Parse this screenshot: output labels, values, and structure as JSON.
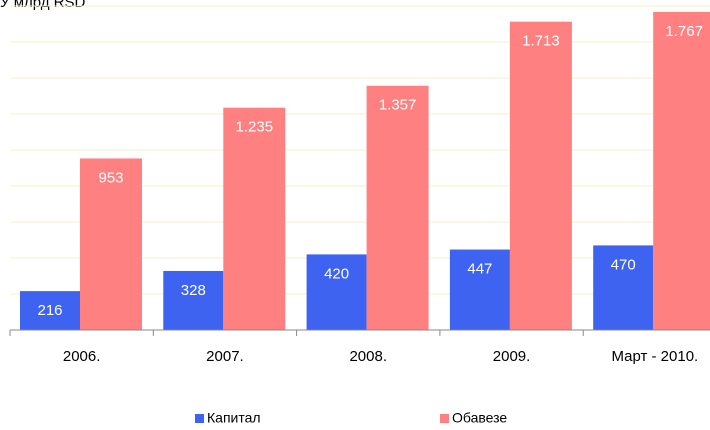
{
  "chart_data": {
    "type": "bar",
    "title": "У млрд RSD",
    "categories": [
      "2006.",
      "2007.",
      "2008.",
      "2009.",
      "Март - 2010."
    ],
    "series": [
      {
        "name": "Капитал",
        "color": "#3d63f0",
        "values": [
          216,
          328,
          420,
          447,
          470
        ],
        "value_labels": [
          "216",
          "328",
          "420",
          "447",
          "470"
        ]
      },
      {
        "name": "Обавезе",
        "color": "#ff8080",
        "values": [
          953,
          1235,
          1357,
          1713,
          1767
        ],
        "value_labels": [
          "953",
          "1.235",
          "1.357",
          "1.713",
          "1.767"
        ]
      }
    ],
    "ylim": [
      0,
      1800
    ],
    "yticks": [
      0,
      200,
      400,
      600,
      800,
      1000,
      1200,
      1400,
      1600,
      1800
    ],
    "grid": true,
    "legend": "bottom"
  }
}
